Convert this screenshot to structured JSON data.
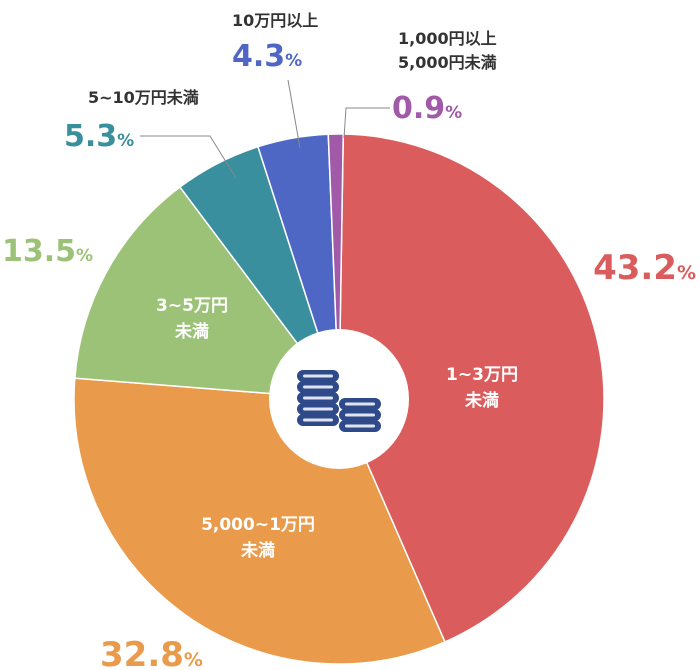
{
  "chart_data": {
    "type": "pie",
    "categories": [
      "1~3万円未満",
      "5,000~1万円未満",
      "3~5万円未満",
      "5~10万円未満",
      "10万円以上",
      "1,000円以上5,000円未満"
    ],
    "values": [
      43.2,
      32.8,
      13.5,
      5.3,
      4.3,
      0.9
    ],
    "unit": "%",
    "colors": [
      "#db5c5c",
      "#e99a4a",
      "#9bc276",
      "#3a8f9e",
      "#4e67c4",
      "#a05aa8"
    ],
    "center_icon": "coin-stack-icon",
    "center_icon_color": "#2f4a8a"
  },
  "slices": [
    {
      "inner_lines": [
        "1~3万円",
        "未満"
      ],
      "pct_text": "43.2%",
      "pct_num": "43.2",
      "pct_unit": "%"
    },
    {
      "inner_lines": [
        "5,000~1万円",
        "未満"
      ],
      "pct_text": "32.8%",
      "pct_num": "32.8",
      "pct_unit": "%"
    },
    {
      "inner_lines": [
        "3~5万円",
        "未満"
      ],
      "pct_text": "13.5%",
      "pct_num": "13.5",
      "pct_unit": "%"
    },
    {
      "outer_lines": [
        "5~10万円未満"
      ],
      "pct_text": "5.3%",
      "pct_num": "5.3",
      "pct_unit": "%"
    },
    {
      "outer_lines": [
        "10万円以上"
      ],
      "pct_text": "4.3%",
      "pct_num": "4.3",
      "pct_unit": "%"
    },
    {
      "outer_lines": [
        "1,000円以上",
        "5,000円未満"
      ],
      "pct_text": "0.9%",
      "pct_num": "0.9",
      "pct_unit": "%"
    }
  ]
}
